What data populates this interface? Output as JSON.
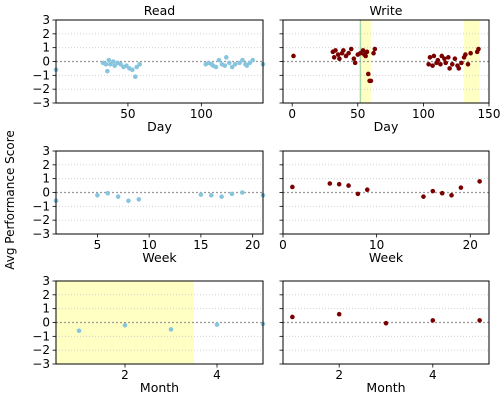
{
  "figure": {
    "ylabel": "Avg Performance Score",
    "colors": {
      "read": "#87c5de",
      "write": "#7a0000",
      "highlight": "#ffffc4",
      "vline": "#a8d8a8",
      "zero_line": "#999999",
      "grid": "#cccccc"
    }
  },
  "chart_data": [
    {
      "type": "scatter",
      "title": "Read",
      "xlabel": "Day",
      "series_key": "read",
      "xlim": [
        1,
        142
      ],
      "ylim": [
        -3,
        3
      ],
      "xticks": [
        50,
        100
      ],
      "yticks": [
        -3,
        -2,
        -1,
        0,
        1,
        2,
        3
      ],
      "grid": "horizontal dotted",
      "zero_line": true,
      "points": [
        [
          1,
          -0.6
        ],
        [
          33,
          -0.1
        ],
        [
          35,
          -0.2
        ],
        [
          36,
          -0.7
        ],
        [
          37,
          0.1
        ],
        [
          38,
          -0.2
        ],
        [
          40,
          0
        ],
        [
          41,
          -0.3
        ],
        [
          43,
          -0.1
        ],
        [
          45,
          -0.2
        ],
        [
          47,
          -0.4
        ],
        [
          49,
          -0.3
        ],
        [
          51,
          -0.5
        ],
        [
          53,
          -0.6
        ],
        [
          55,
          -1.1
        ],
        [
          56,
          -0.4
        ],
        [
          58,
          -0.2
        ],
        [
          103,
          -0.2
        ],
        [
          105,
          -0.1
        ],
        [
          107,
          -0.2
        ],
        [
          108,
          -0.3
        ],
        [
          110,
          -0.4
        ],
        [
          112,
          0.1
        ],
        [
          114,
          -0.2
        ],
        [
          116,
          -0.3
        ],
        [
          117,
          0.3
        ],
        [
          119,
          -0.1
        ],
        [
          121,
          -0.4
        ],
        [
          123,
          -0.2
        ],
        [
          126,
          -0.1
        ],
        [
          128,
          0.1
        ],
        [
          130,
          -0.2
        ],
        [
          131,
          -0.3
        ],
        [
          133,
          -0.1
        ],
        [
          135,
          0.1
        ],
        [
          142,
          -0.2
        ]
      ]
    },
    {
      "type": "scatter",
      "title": "Write",
      "xlabel": "Day",
      "series_key": "write",
      "xlim": [
        -7,
        150
      ],
      "ylim": [
        -3,
        3
      ],
      "xticks": [
        0,
        50,
        100,
        150
      ],
      "yticks": [
        -3,
        -2,
        -1,
        0,
        1,
        2,
        3
      ],
      "grid": "horizontal dotted",
      "zero_line": true,
      "highlight_x": [
        [
          53,
          60
        ],
        [
          131,
          143
        ]
      ],
      "vline_x": [
        52
      ],
      "points": [
        [
          1,
          0.4
        ],
        [
          31,
          0.7
        ],
        [
          32,
          0.3
        ],
        [
          33,
          0.8
        ],
        [
          35,
          0.5
        ],
        [
          36,
          0.2
        ],
        [
          38,
          0.6
        ],
        [
          39,
          0.8
        ],
        [
          41,
          0.4
        ],
        [
          43,
          0.6
        ],
        [
          45,
          0.9
        ],
        [
          47,
          0.2
        ],
        [
          48,
          -0.1
        ],
        [
          50,
          0.5
        ],
        [
          52,
          0.6
        ],
        [
          54,
          0.8
        ],
        [
          55,
          0.5
        ],
        [
          56,
          0.4
        ],
        [
          57,
          0.7
        ],
        [
          58,
          -0.9
        ],
        [
          59,
          -1.4
        ],
        [
          60,
          -1.4
        ],
        [
          62,
          0.6
        ],
        [
          63,
          0.9
        ],
        [
          104,
          -0.2
        ],
        [
          105,
          0.3
        ],
        [
          107,
          -0.3
        ],
        [
          108,
          0.4
        ],
        [
          110,
          -0.1
        ],
        [
          111,
          0.1
        ],
        [
          113,
          -0.2
        ],
        [
          114,
          0.4
        ],
        [
          116,
          0.2
        ],
        [
          117,
          -0.1
        ],
        [
          119,
          0.3
        ],
        [
          120,
          -0.5
        ],
        [
          122,
          -0.2
        ],
        [
          124,
          0.2
        ],
        [
          126,
          -0.3
        ],
        [
          127,
          -0.5
        ],
        [
          129,
          -0.1
        ],
        [
          131,
          0.3
        ],
        [
          132,
          0.5
        ],
        [
          134,
          -0.2
        ],
        [
          136,
          0.6
        ],
        [
          141,
          0.7
        ],
        [
          142,
          0.9
        ]
      ]
    },
    {
      "type": "scatter",
      "xlabel": "Week",
      "series_key": "read",
      "xlim": [
        1,
        21
      ],
      "ylim": [
        -3,
        3
      ],
      "xticks": [
        5,
        10,
        15,
        20
      ],
      "yticks": [
        -3,
        -2,
        -1,
        0,
        1,
        2,
        3
      ],
      "grid": "horizontal dotted",
      "zero_line": true,
      "points": [
        [
          1,
          -0.6
        ],
        [
          5,
          -0.2
        ],
        [
          6,
          -0.05
        ],
        [
          7,
          -0.3
        ],
        [
          8,
          -0.6
        ],
        [
          9,
          -0.5
        ],
        [
          15,
          -0.15
        ],
        [
          16,
          -0.2
        ],
        [
          17,
          -0.3
        ],
        [
          18,
          -0.1
        ],
        [
          19,
          0.0
        ],
        [
          21,
          -0.2
        ]
      ]
    },
    {
      "type": "scatter",
      "xlabel": "Week",
      "series_key": "write",
      "xlim": [
        0,
        22
      ],
      "ylim": [
        -3,
        3
      ],
      "xticks": [
        0,
        10,
        20
      ],
      "yticks": [
        -3,
        -2,
        -1,
        0,
        1,
        2,
        3
      ],
      "grid": "horizontal dotted",
      "zero_line": true,
      "points": [
        [
          1,
          0.4
        ],
        [
          5,
          0.65
        ],
        [
          6,
          0.6
        ],
        [
          7,
          0.5
        ],
        [
          8,
          -0.1
        ],
        [
          9,
          0.2
        ],
        [
          15,
          -0.3
        ],
        [
          16,
          0.1
        ],
        [
          17,
          -0.05
        ],
        [
          18,
          -0.2
        ],
        [
          19,
          0.35
        ],
        [
          21,
          0.8
        ]
      ]
    },
    {
      "type": "scatter",
      "xlabel": "Month",
      "series_key": "read",
      "xlim": [
        0.5,
        5.0
      ],
      "ylim": [
        -3,
        3
      ],
      "xticks": [
        2,
        4
      ],
      "yticks": [
        -3,
        -2,
        -1,
        0,
        1,
        2,
        3
      ],
      "grid": "horizontal dotted",
      "zero_line": true,
      "highlight_x": [
        [
          0.5,
          3.5
        ]
      ],
      "points": [
        [
          1,
          -0.6
        ],
        [
          2,
          -0.2
        ],
        [
          3,
          -0.5
        ],
        [
          4,
          -0.15
        ],
        [
          5,
          -0.1
        ]
      ]
    },
    {
      "type": "scatter",
      "xlabel": "Month",
      "series_key": "write",
      "xlim": [
        0.8,
        5.2
      ],
      "ylim": [
        -3,
        3
      ],
      "xticks": [
        2,
        4
      ],
      "yticks": [
        -3,
        -2,
        -1,
        0,
        1,
        2,
        3
      ],
      "grid": "horizontal dotted",
      "zero_line": true,
      "points": [
        [
          1,
          0.4
        ],
        [
          2,
          0.6
        ],
        [
          3,
          -0.05
        ],
        [
          4,
          0.15
        ],
        [
          5,
          0.15
        ]
      ]
    }
  ]
}
